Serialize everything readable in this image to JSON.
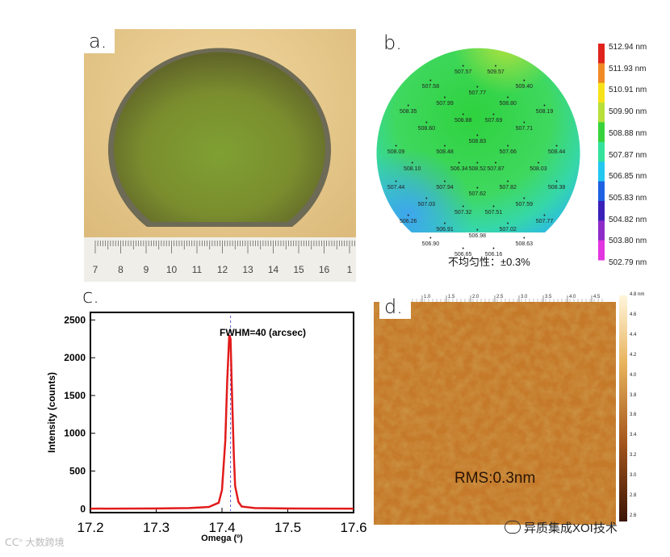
{
  "labels": {
    "a": "a.",
    "b": "b.",
    "c": "c.",
    "d": "d."
  },
  "ruler": {
    "ticks": [
      "7",
      "8",
      "9",
      "10",
      "11",
      "12",
      "13",
      "14",
      "15",
      "16",
      "1"
    ]
  },
  "wafer_map": {
    "points": [
      {
        "v": "509.57",
        "x": 0.52,
        "y": 0.1
      },
      {
        "v": "507.57",
        "x": 0.36,
        "y": 0.1
      },
      {
        "v": "509.40",
        "x": 0.66,
        "y": 0.17
      },
      {
        "v": "507.58",
        "x": 0.2,
        "y": 0.17
      },
      {
        "v": "507.77",
        "x": 0.43,
        "y": 0.2
      },
      {
        "v": "507.99",
        "x": 0.27,
        "y": 0.25
      },
      {
        "v": "508.80",
        "x": 0.58,
        "y": 0.25
      },
      {
        "v": "508.35",
        "x": 0.09,
        "y": 0.29
      },
      {
        "v": "508.19",
        "x": 0.76,
        "y": 0.29
      },
      {
        "v": "508.88",
        "x": 0.36,
        "y": 0.33
      },
      {
        "v": "507.69",
        "x": 0.51,
        "y": 0.33
      },
      {
        "v": "508.60",
        "x": 0.18,
        "y": 0.37
      },
      {
        "v": "507.71",
        "x": 0.66,
        "y": 0.37
      },
      {
        "v": "508.83",
        "x": 0.43,
        "y": 0.43
      },
      {
        "v": "508.09",
        "x": 0.03,
        "y": 0.48
      },
      {
        "v": "508.48",
        "x": 0.27,
        "y": 0.48
      },
      {
        "v": "507.66",
        "x": 0.58,
        "y": 0.48
      },
      {
        "v": "508.44",
        "x": 0.82,
        "y": 0.48
      },
      {
        "v": "508.10",
        "x": 0.11,
        "y": 0.56
      },
      {
        "v": "506.34",
        "x": 0.34,
        "y": 0.56
      },
      {
        "v": "508.52",
        "x": 0.43,
        "y": 0.56
      },
      {
        "v": "507.87",
        "x": 0.52,
        "y": 0.56
      },
      {
        "v": "508.03",
        "x": 0.73,
        "y": 0.56
      },
      {
        "v": "507.44",
        "x": 0.03,
        "y": 0.65
      },
      {
        "v": "507.94",
        "x": 0.27,
        "y": 0.65
      },
      {
        "v": "507.82",
        "x": 0.58,
        "y": 0.65
      },
      {
        "v": "508.38",
        "x": 0.82,
        "y": 0.65
      },
      {
        "v": "507.62",
        "x": 0.43,
        "y": 0.68
      },
      {
        "v": "507.03",
        "x": 0.18,
        "y": 0.73
      },
      {
        "v": "507.59",
        "x": 0.66,
        "y": 0.73
      },
      {
        "v": "507.32",
        "x": 0.36,
        "y": 0.77
      },
      {
        "v": "507.51",
        "x": 0.51,
        "y": 0.77
      },
      {
        "v": "506.26",
        "x": 0.09,
        "y": 0.81
      },
      {
        "v": "507.77",
        "x": 0.76,
        "y": 0.81
      },
      {
        "v": "506.91",
        "x": 0.27,
        "y": 0.85
      },
      {
        "v": "507.02",
        "x": 0.58,
        "y": 0.85
      },
      {
        "v": "506.98",
        "x": 0.43,
        "y": 0.88
      },
      {
        "v": "506.90",
        "x": 0.2,
        "y": 0.92
      },
      {
        "v": "508.63",
        "x": 0.66,
        "y": 0.92
      },
      {
        "v": "506.65",
        "x": 0.36,
        "y": 0.97
      },
      {
        "v": "506.16",
        "x": 0.51,
        "y": 0.97
      }
    ],
    "scale": [
      "512.94 nm",
      "511.93 nm",
      "510.91 nm",
      "509.90 nm",
      "508.88 nm",
      "507.87 nm",
      "506.85 nm",
      "505.83 nm",
      "504.82 nm",
      "503.80 nm",
      "502.79 nm"
    ],
    "scale_colors": [
      "#e0231c",
      "#f08a25",
      "#f7e21a",
      "#b7e03a",
      "#38d33c",
      "#33e29b",
      "#23c8f0",
      "#1d61e2",
      "#3a20b8",
      "#8d2cc8",
      "#e236e0"
    ],
    "uniformity": "不均匀性：±0.3%"
  },
  "chart_data": {
    "type": "line",
    "x": [
      17.2,
      17.3,
      17.35,
      17.38,
      17.395,
      17.4,
      17.405,
      17.408,
      17.411,
      17.413,
      17.415,
      17.418,
      17.42,
      17.425,
      17.43,
      17.45,
      17.5,
      17.6
    ],
    "y": [
      2,
      5,
      10,
      25,
      80,
      250,
      900,
      1700,
      2300,
      2250,
      1600,
      700,
      300,
      90,
      30,
      10,
      5,
      2
    ],
    "xlabel": "Omega (º)",
    "ylabel": "Intensity (counts)",
    "xlim": [
      17.2,
      17.6
    ],
    "ylim": [
      -50,
      2600
    ],
    "xticks": [
      "17.2",
      "17.3",
      "17.4",
      "17.5",
      "17.6"
    ],
    "yticks": [
      "0",
      "500",
      "1000",
      "1500",
      "2000",
      "2500"
    ],
    "annotation": "FWHM=40 (arcsec)",
    "peak_x": 17.413,
    "color": "#e21b1b"
  },
  "afm": {
    "rms": "RMS:0.3nm",
    "top_ticks": [
      "1.0",
      "1.5",
      "2.0",
      "2.5",
      "3.0",
      "3.5",
      "4.0",
      "4.5"
    ],
    "scale_ticks": [
      "4.8 nm",
      "4.6",
      "4.4",
      "4.2",
      "4.0",
      "3.8",
      "3.6",
      "3.4",
      "3.2",
      "3.0",
      "2.8",
      "2.6"
    ]
  },
  "footer": {
    "wechat": "异质集成XOI技术",
    "watermark": "大数跨境"
  }
}
